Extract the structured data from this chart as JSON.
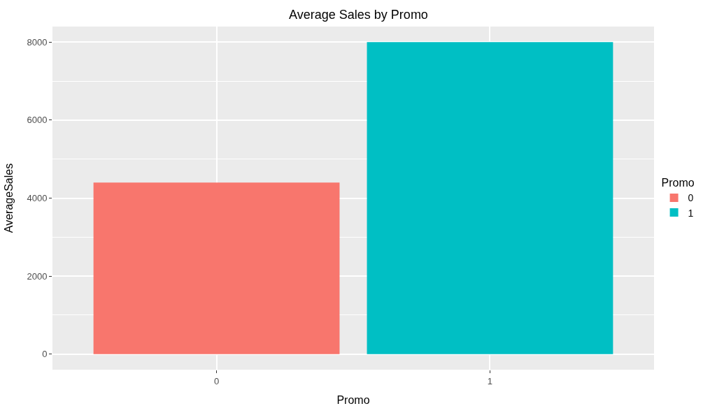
{
  "chart_data": {
    "type": "bar",
    "title": "Average Sales by Promo",
    "xlabel": "Promo",
    "ylabel": "AverageSales",
    "legend_title": "Promo",
    "categories": [
      "0",
      "1"
    ],
    "series": [
      {
        "name": "0",
        "color": "#f8766d",
        "values": [
          4400,
          null
        ]
      },
      {
        "name": "1",
        "color": "#00bfc4",
        "values": [
          null,
          8000
        ]
      }
    ],
    "ylim": [
      -400,
      8400
    ],
    "yticks": [
      0,
      2000,
      4000,
      6000,
      8000
    ],
    "grid": true,
    "legend": "right"
  }
}
